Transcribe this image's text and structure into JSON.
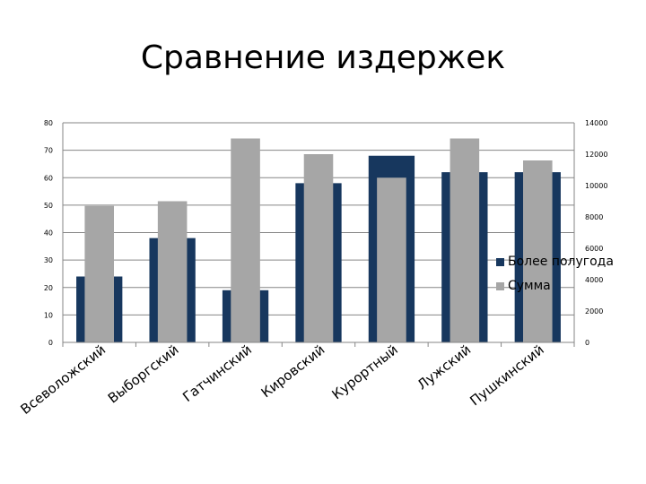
{
  "chart_data": {
    "type": "bar",
    "title": "Сравнение издержек",
    "categories": [
      "Всеволожский",
      "Выборгский",
      "Гатчинский",
      "Кировский",
      "Курортный",
      "Лужский",
      "Пушкинский"
    ],
    "series": [
      {
        "name": "Более полугода",
        "axis": "left",
        "color": "#17375e",
        "values": [
          24,
          38,
          19,
          58,
          68,
          62,
          62
        ]
      },
      {
        "name": "Сумма",
        "axis": "right",
        "color": "#a6a6a6",
        "values": [
          8700,
          9000,
          13000,
          12000,
          10500,
          13000,
          11600
        ]
      }
    ],
    "y_left": {
      "ylim": [
        0,
        80
      ],
      "ticks": [
        "0",
        "10",
        "20",
        "30",
        "40",
        "50",
        "60",
        "70",
        "80"
      ]
    },
    "y_right": {
      "ylim": [
        0,
        14000
      ],
      "ticks": [
        "0",
        "2000",
        "4000",
        "6000",
        "8000",
        "10000",
        "12000",
        "14000"
      ]
    },
    "grid": true,
    "legend": "right"
  }
}
